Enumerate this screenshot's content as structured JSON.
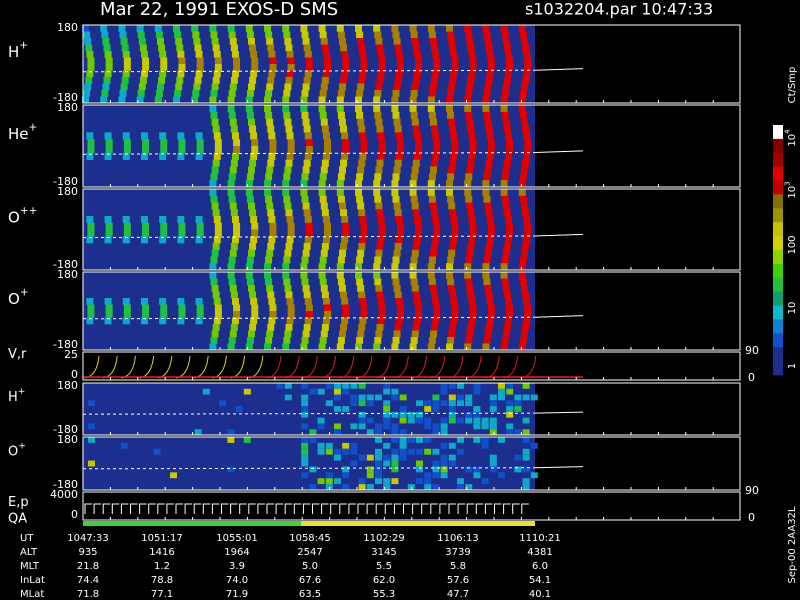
{
  "header": {
    "title": "Mar 22, 1991   EXOS-D SMS",
    "file": "s1032204.par  10:47:33"
  },
  "panels": [
    {
      "label": {
        "base": "H",
        "sup": "+"
      },
      "ticks": [
        "180",
        "-180"
      ]
    },
    {
      "label": {
        "base": "He",
        "sup": "+"
      },
      "ticks": [
        "180",
        "-180"
      ]
    },
    {
      "label": {
        "base": "O",
        "sup": "++"
      },
      "ticks": [
        "180",
        "-180"
      ]
    },
    {
      "label": {
        "base": "O",
        "sup": "+"
      },
      "ticks": [
        "180",
        "-180"
      ]
    },
    {
      "label": {
        "base": "V,r"
      },
      "ticks": [
        "25",
        "0"
      ],
      "right_ticks": [
        "90",
        "0"
      ]
    },
    {
      "label": {
        "base": "H",
        "sup": "+"
      },
      "ticks": [
        "180",
        "-180"
      ]
    },
    {
      "label": {
        "base": "O",
        "sup": "+"
      },
      "ticks": [
        "180",
        "-180"
      ]
    },
    {
      "label": {
        "base": "E,p"
      },
      "label2": "QA",
      "ticks": [
        "4000",
        "0"
      ],
      "right_ticks": [
        "90",
        "0"
      ]
    }
  ],
  "colorbar": {
    "unit": "Ct/Smp",
    "ticks": [
      {
        "base": "10",
        "sup": "4"
      },
      {
        "base": "10",
        "sup": "3"
      },
      {
        "base": "100"
      },
      {
        "base": "10"
      },
      {
        "base": "1"
      }
    ]
  },
  "ephemeris": {
    "rows": [
      {
        "label": "UT",
        "values": [
          "1047:33",
          "1051:17",
          "1055:01",
          "1058:45",
          "1102:29",
          "1106:13",
          "1110:21"
        ]
      },
      {
        "label": "ALT",
        "values": [
          "935",
          "1416",
          "1964",
          "2547",
          "3145",
          "3739",
          "4381"
        ]
      },
      {
        "label": "MLT",
        "values": [
          "21.8",
          "1.2",
          "3.9",
          "5.0",
          "5.5",
          "5.8",
          "6.0"
        ]
      },
      {
        "label": "InLat",
        "values": [
          "74.4",
          "78.8",
          "74.0",
          "67.6",
          "62.0",
          "57.6",
          "54.1"
        ]
      },
      {
        "label": "MLat",
        "values": [
          "71.8",
          "77.1",
          "71.9",
          "63.5",
          "55.3",
          "47.7",
          "40.1"
        ]
      }
    ]
  },
  "footer": "Sep-00  2AA32L"
}
